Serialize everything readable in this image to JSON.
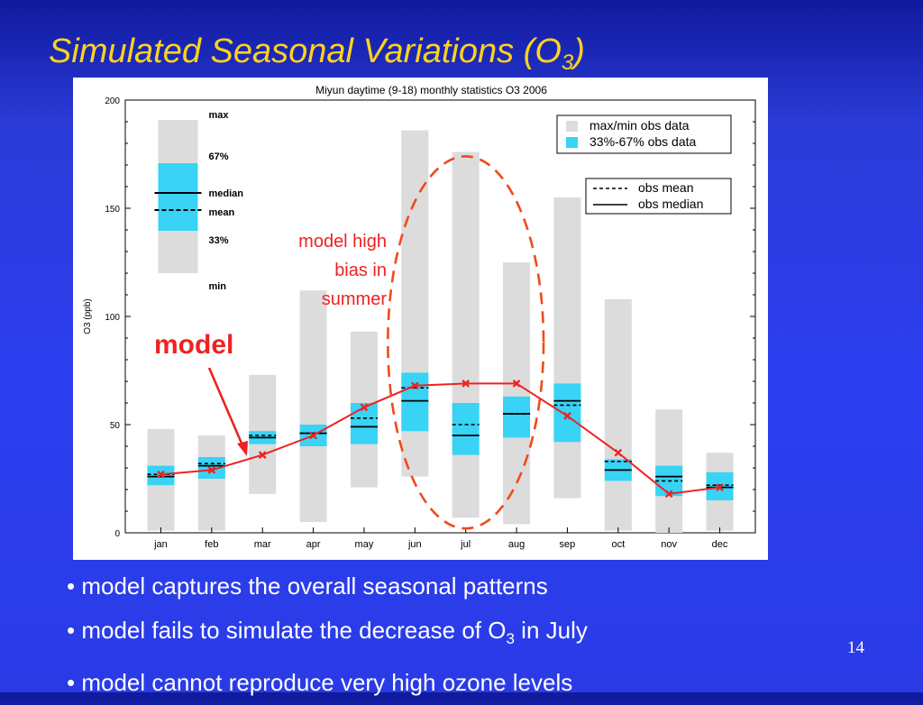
{
  "slide": {
    "title_main": "Simulated Seasonal Variations (O",
    "title_sub": "3",
    "title_end": ")",
    "page_number": "14",
    "bullets": [
      {
        "bullet": "•",
        "text": "model captures the overall seasonal patterns"
      },
      {
        "bullet": "•",
        "text": "model fails to simulate the decrease of O",
        "sub": "3",
        "after": " in July"
      },
      {
        "bullet": "•",
        "text": "model cannot reproduce very high ozone levels"
      }
    ]
  },
  "chart_data": {
    "type": "box",
    "title": "Miyun daytime (9-18) monthly statistics O3 2006",
    "ylabel": "O3 (ppb)",
    "xlabel": "",
    "ylim": [
      0,
      200
    ],
    "yticks": [
      0,
      50,
      100,
      150,
      200
    ],
    "categories": [
      "jan",
      "feb",
      "mar",
      "apr",
      "may",
      "jun",
      "jul",
      "aug",
      "sep",
      "oct",
      "nov",
      "dec"
    ],
    "obs_max": [
      48,
      45,
      73,
      112,
      93,
      186,
      176,
      125,
      155,
      108,
      57,
      37
    ],
    "obs_min": [
      1,
      1,
      18,
      5,
      21,
      26,
      7,
      4,
      16,
      1,
      0,
      1
    ],
    "obs_p67": [
      31,
      35,
      47,
      50,
      60,
      74,
      60,
      63,
      69,
      34,
      31,
      28
    ],
    "obs_p33": [
      22,
      25,
      41,
      40,
      41,
      47,
      36,
      44,
      42,
      24,
      17,
      15
    ],
    "obs_mean": [
      27,
      32,
      45,
      46,
      53,
      67,
      50,
      55,
      59,
      33,
      24,
      22
    ],
    "obs_median": [
      26,
      31,
      44,
      46,
      49,
      61,
      45,
      55,
      61,
      29,
      26,
      21
    ],
    "model": [
      27,
      29,
      36,
      45,
      58,
      68,
      69,
      69,
      54,
      37,
      18,
      21
    ],
    "legend_obs": [
      "max/min obs data",
      "33%-67% obs data"
    ],
    "legend_lines": [
      "obs mean",
      "obs median"
    ],
    "key_labels": {
      "max": "max",
      "p67": "67%",
      "median": "median",
      "mean": "mean",
      "p33": "33%",
      "min": "min"
    },
    "annotations": {
      "model_label": "model",
      "bias_lines": [
        "model high",
        "bias in",
        "summer"
      ]
    },
    "colors": {
      "range_bar": "#dcdcdc",
      "iqr_bar": "#38d3f5",
      "model_line": "#ee2222",
      "ellipse": "#f04a1a",
      "annotation": "#ee2222",
      "title": "#ffd21e"
    }
  }
}
